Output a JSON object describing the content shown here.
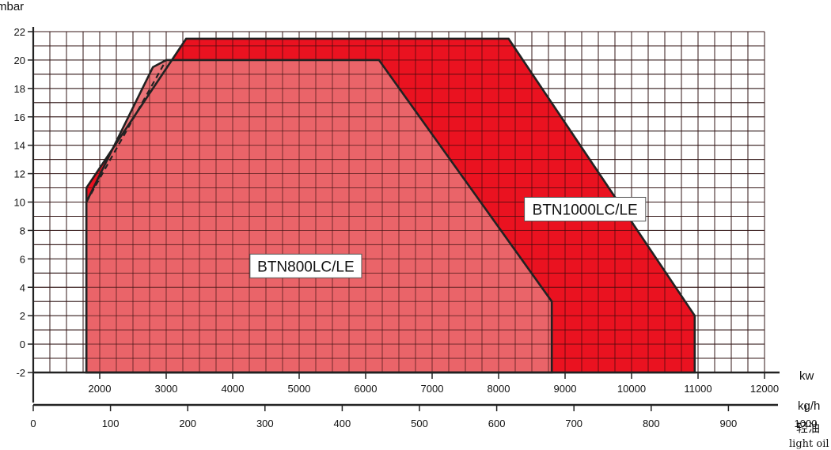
{
  "chart_data": {
    "type": "area",
    "xlabel": "kw",
    "ylabel": "mbar",
    "xlim": [
      1000,
      12000
    ],
    "ylim": [
      -2,
      22
    ],
    "x_ticks": [
      "2000",
      "3000",
      "4000",
      "5000",
      "6000",
      "7000",
      "8000",
      "9000",
      "10000",
      "11000",
      "12000"
    ],
    "x_tick_values": [
      2000,
      3000,
      4000,
      5000,
      6000,
      7000,
      8000,
      9000,
      10000,
      11000,
      12000
    ],
    "y_ticks": [
      "-2",
      "0",
      "2",
      "4",
      "6",
      "8",
      "10",
      "12",
      "14",
      "16",
      "18",
      "20",
      "22"
    ],
    "y_tick_values": [
      -2,
      0,
      2,
      4,
      6,
      8,
      10,
      12,
      14,
      16,
      18,
      20,
      22
    ],
    "grid": true,
    "secondary_axis": {
      "label_cn": "轻油",
      "label": "kg/h",
      "sublabel": "light oil",
      "ticks": [
        "0",
        "100",
        "200",
        "300",
        "400",
        "500",
        "600",
        "700",
        "800",
        "900",
        "1000"
      ],
      "tick_values": [
        0,
        100,
        200,
        300,
        400,
        500,
        600,
        700,
        800,
        900,
        1000
      ]
    },
    "series": [
      {
        "name": "BTN1000LC/LE",
        "color": "#e8000f",
        "polygon": [
          [
            1800,
            -2
          ],
          [
            1800,
            11
          ],
          [
            3300,
            21.5
          ],
          [
            8150,
            21.5
          ],
          [
            10950,
            2
          ],
          [
            10950,
            -2
          ]
        ]
      },
      {
        "name": "BTN800LC/LE",
        "color": "#ea6b6f",
        "polygon": [
          [
            1800,
            -2
          ],
          [
            1800,
            10
          ],
          [
            2800,
            19.5
          ],
          [
            3000,
            20
          ],
          [
            6200,
            20
          ],
          [
            8800,
            3
          ],
          [
            8800,
            -2
          ]
        ]
      }
    ],
    "dashed_line": [
      [
        1800,
        10
      ],
      [
        3000,
        20
      ]
    ],
    "annotations": [
      {
        "text": "BTN1000LC/LE",
        "x": 9300,
        "y": 9.5
      },
      {
        "text": "BTN800LC/LE",
        "x": 5100,
        "y": 5.5
      }
    ]
  }
}
